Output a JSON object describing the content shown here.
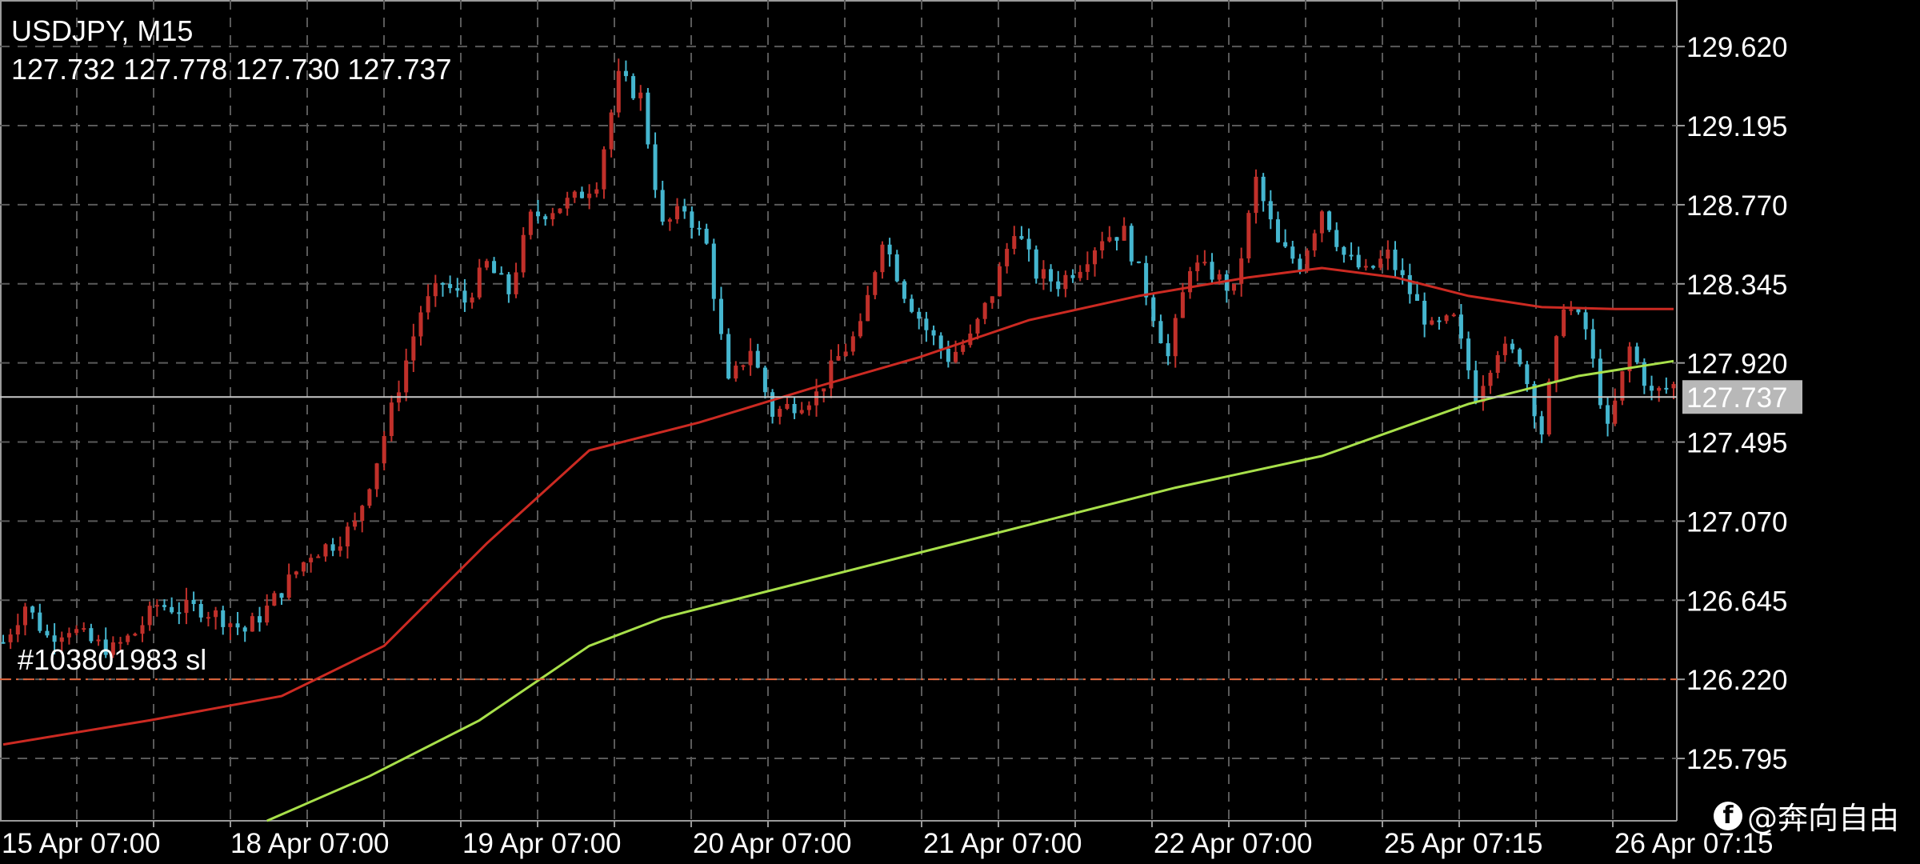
{
  "header": {
    "symbol": "USDJPY, M15",
    "ohlc": "127.732 127.778 127.730 127.737"
  },
  "watermark": {
    "text": "@奔向自由",
    "logo_icon": "facebook-icon"
  },
  "colors": {
    "background": "#000000",
    "grid": "#5a5a5a",
    "bull": "#c0302a",
    "bear": "#45b6cf",
    "ma_slow": "#cc2a22",
    "ma_fast": "#a8e04a",
    "price_line": "#c8c8c8",
    "price_label_bg": "#b8b8b8",
    "sl_line": "#e0643c"
  },
  "chart_data": {
    "type": "candlestick",
    "title": "USDJPY, M15",
    "ylim": [
      125.46,
      129.87
    ],
    "y_ticks": [
      "129.620",
      "129.195",
      "128.770",
      "128.345",
      "127.920",
      "127.495",
      "127.070",
      "126.645",
      "126.220",
      "125.795"
    ],
    "x_labels": [
      "15 Apr 07:00",
      "18 Apr 07:00",
      "19 Apr 07:00",
      "20 Apr 07:00",
      "21 Apr 07:00",
      "22 Apr 07:00",
      "25 Apr 07:15",
      "26 Apr 07:15"
    ],
    "current_price": "127.737",
    "stop_loss": {
      "label": "#103801983 sl",
      "price": 126.22
    },
    "price_path": [
      [
        0,
        126.42
      ],
      [
        3,
        126.62
      ],
      [
        6,
        126.45
      ],
      [
        9,
        126.5
      ],
      [
        12,
        126.42
      ],
      [
        15,
        126.38
      ],
      [
        18,
        126.47
      ],
      [
        21,
        126.62
      ],
      [
        24,
        126.6
      ],
      [
        27,
        126.6
      ],
      [
        30,
        126.55
      ],
      [
        33,
        126.48
      ],
      [
        36,
        126.6
      ],
      [
        39,
        126.75
      ],
      [
        42,
        126.9
      ],
      [
        45,
        126.95
      ],
      [
        48,
        127.05
      ],
      [
        51,
        127.4
      ],
      [
        54,
        127.8
      ],
      [
        57,
        128.2
      ],
      [
        60,
        128.35
      ],
      [
        63,
        128.25
      ],
      [
        66,
        128.45
      ],
      [
        69,
        128.3
      ],
      [
        72,
        128.7
      ],
      [
        75,
        128.75
      ],
      [
        78,
        128.8
      ],
      [
        81,
        128.9
      ],
      [
        84,
        129.45
      ],
      [
        87,
        129.35
      ],
      [
        90,
        128.65
      ],
      [
        93,
        128.75
      ],
      [
        96,
        128.55
      ],
      [
        99,
        127.8
      ],
      [
        102,
        128.0
      ],
      [
        105,
        127.65
      ],
      [
        108,
        127.7
      ],
      [
        111,
        127.75
      ],
      [
        114,
        127.95
      ],
      [
        117,
        128.1
      ],
      [
        120,
        128.6
      ],
      [
        123,
        128.3
      ],
      [
        126,
        128.1
      ],
      [
        129,
        127.95
      ],
      [
        132,
        128.05
      ],
      [
        135,
        128.3
      ],
      [
        138,
        128.65
      ],
      [
        141,
        128.4
      ],
      [
        144,
        128.35
      ],
      [
        147,
        128.45
      ],
      [
        150,
        128.6
      ],
      [
        153,
        128.62
      ],
      [
        156,
        128.3
      ],
      [
        159,
        127.95
      ],
      [
        162,
        128.45
      ],
      [
        165,
        128.4
      ],
      [
        168,
        128.3
      ],
      [
        171,
        128.9
      ],
      [
        174,
        128.55
      ],
      [
        177,
        128.45
      ],
      [
        180,
        128.75
      ],
      [
        183,
        128.5
      ],
      [
        186,
        128.4
      ],
      [
        189,
        128.5
      ],
      [
        192,
        128.3
      ],
      [
        195,
        128.1
      ],
      [
        198,
        128.15
      ],
      [
        201,
        127.75
      ],
      [
        204,
        128.0
      ],
      [
        207,
        127.95
      ],
      [
        210,
        127.55
      ],
      [
        213,
        128.25
      ],
      [
        216,
        128.1
      ],
      [
        219,
        127.55
      ],
      [
        222,
        128.0
      ],
      [
        225,
        127.75
      ],
      [
        228,
        127.8
      ]
    ],
    "series": [
      {
        "name": "",
        "type": "line",
        "color": "#cc2a22",
        "points": [
          [
            0,
            125.87
          ],
          [
            20,
            126.0
          ],
          [
            38,
            126.13
          ],
          [
            52,
            126.4
          ],
          [
            66,
            126.95
          ],
          [
            80,
            127.45
          ],
          [
            95,
            127.6
          ],
          [
            110,
            127.78
          ],
          [
            125,
            127.95
          ],
          [
            140,
            128.15
          ],
          [
            155,
            128.28
          ],
          [
            170,
            128.38
          ],
          [
            180,
            128.43
          ],
          [
            190,
            128.38
          ],
          [
            200,
            128.28
          ],
          [
            210,
            128.22
          ],
          [
            220,
            128.21
          ],
          [
            228,
            128.21
          ]
        ]
      },
      {
        "name": "",
        "type": "line",
        "color": "#a8e04a",
        "points": [
          [
            36,
            125.46
          ],
          [
            50,
            125.7
          ],
          [
            65,
            126.0
          ],
          [
            80,
            126.4
          ],
          [
            90,
            126.55
          ],
          [
            105,
            126.7
          ],
          [
            125,
            126.9
          ],
          [
            145,
            127.1
          ],
          [
            160,
            127.25
          ],
          [
            180,
            127.42
          ],
          [
            200,
            127.7
          ],
          [
            215,
            127.85
          ],
          [
            228,
            127.93
          ]
        ]
      }
    ]
  }
}
